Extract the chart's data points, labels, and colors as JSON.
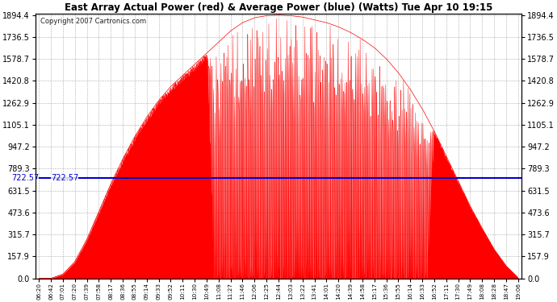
{
  "title": "East Array Actual Power (red) & Average Power (blue) (Watts) Tue Apr 10 19:15",
  "copyright": "Copyright 2007 Cartronics.com",
  "avg_power": 722.57,
  "y_max": 1894.4,
  "y_min": 0.0,
  "y_ticks": [
    0.0,
    157.9,
    315.7,
    473.6,
    631.5,
    789.3,
    947.2,
    1105.1,
    1262.9,
    1420.8,
    1578.7,
    1736.5,
    1894.4
  ],
  "background_color": "#ffffff",
  "grid_color": "#aaaaaa",
  "red_color": "#ff0000",
  "blue_color": "#0000cc",
  "x_labels": [
    "06:20",
    "06:42",
    "07:01",
    "07:20",
    "07:39",
    "07:58",
    "08:17",
    "08:36",
    "08:55",
    "09:14",
    "09:33",
    "09:52",
    "10:11",
    "10:30",
    "10:49",
    "11:08",
    "11:27",
    "11:46",
    "12:06",
    "12:25",
    "12:44",
    "13:03",
    "13:22",
    "13:41",
    "14:01",
    "14:20",
    "14:39",
    "14:58",
    "15:17",
    "15:36",
    "15:55",
    "16:14",
    "16:33",
    "16:52",
    "17:11",
    "17:30",
    "17:49",
    "18:08",
    "18:28",
    "18:47",
    "19:06"
  ],
  "base_envelope": [
    0,
    0,
    30,
    120,
    280,
    480,
    680,
    860,
    1020,
    1160,
    1280,
    1380,
    1460,
    1540,
    1620,
    1700,
    1780,
    1840,
    1875,
    1890,
    1894,
    1890,
    1880,
    1860,
    1840,
    1810,
    1770,
    1720,
    1660,
    1580,
    1480,
    1360,
    1220,
    1060,
    880,
    700,
    520,
    360,
    210,
    90,
    5
  ],
  "dip_regions": {
    "start": 14,
    "end": 33
  }
}
